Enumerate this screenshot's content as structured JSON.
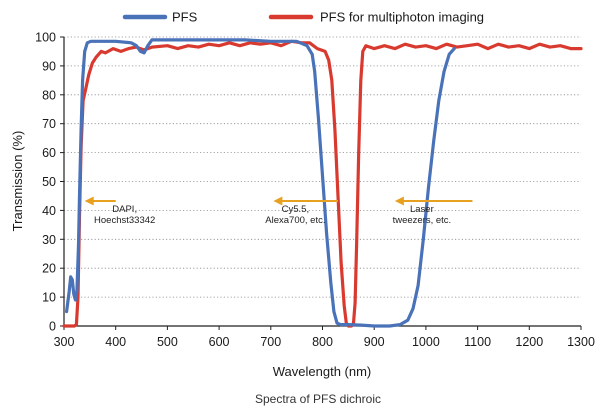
{
  "chart_data": {
    "type": "line",
    "title": "",
    "xlabel": "Wavelength (nm)",
    "ylabel": "Transmission (%)",
    "xlim": [
      300,
      1300
    ],
    "ylim": [
      0,
      100
    ],
    "xticks": [
      300,
      400,
      500,
      600,
      700,
      800,
      900,
      1000,
      1100,
      1200,
      1300
    ],
    "yticks": [
      0,
      10,
      20,
      30,
      40,
      50,
      60,
      70,
      80,
      90,
      100
    ],
    "grid": "horizontal-dotted",
    "legend": "top-center",
    "caption": "Spectra of PFS dichroic",
    "series": [
      {
        "name": "PFS",
        "color": "#4a72b8",
        "points": [
          [
            305,
            5
          ],
          [
            310,
            12
          ],
          [
            313,
            17
          ],
          [
            316,
            16
          ],
          [
            319,
            11
          ],
          [
            322,
            9
          ],
          [
            325,
            12
          ],
          [
            328,
            28
          ],
          [
            330,
            45
          ],
          [
            333,
            68
          ],
          [
            336,
            85
          ],
          [
            340,
            95
          ],
          [
            345,
            98
          ],
          [
            352,
            98.5
          ],
          [
            370,
            98.5
          ],
          [
            400,
            98.5
          ],
          [
            430,
            98
          ],
          [
            440,
            97
          ],
          [
            448,
            95
          ],
          [
            455,
            94.5
          ],
          [
            462,
            97
          ],
          [
            470,
            99
          ],
          [
            500,
            99
          ],
          [
            550,
            99
          ],
          [
            600,
            99
          ],
          [
            650,
            99
          ],
          [
            700,
            98.5
          ],
          [
            750,
            98.5
          ],
          [
            770,
            97
          ],
          [
            780,
            94
          ],
          [
            785,
            88
          ],
          [
            792,
            72
          ],
          [
            800,
            52
          ],
          [
            808,
            32
          ],
          [
            816,
            15
          ],
          [
            822,
            5
          ],
          [
            828,
            1
          ],
          [
            835,
            0.5
          ],
          [
            850,
            0.5
          ],
          [
            875,
            0.3
          ],
          [
            900,
            0
          ],
          [
            930,
            0
          ],
          [
            950,
            0.5
          ],
          [
            965,
            2
          ],
          [
            975,
            6
          ],
          [
            985,
            14
          ],
          [
            995,
            30
          ],
          [
            1005,
            48
          ],
          [
            1015,
            64
          ],
          [
            1025,
            78
          ],
          [
            1035,
            88
          ],
          [
            1045,
            94
          ],
          [
            1055,
            96
          ]
        ]
      },
      {
        "name": "PFS for multiphoton imaging",
        "color": "#d93a2f",
        "points": [
          [
            300,
            0
          ],
          [
            320,
            0
          ],
          [
            324,
            0.5
          ],
          [
            327,
            10
          ],
          [
            330,
            38
          ],
          [
            333,
            62
          ],
          [
            337,
            78
          ],
          [
            342,
            82
          ],
          [
            348,
            87
          ],
          [
            355,
            91
          ],
          [
            362,
            93
          ],
          [
            372,
            95
          ],
          [
            380,
            94.5
          ],
          [
            395,
            96
          ],
          [
            410,
            95
          ],
          [
            425,
            96
          ],
          [
            440,
            96.5
          ],
          [
            455,
            95.5
          ],
          [
            470,
            96.5
          ],
          [
            500,
            97
          ],
          [
            520,
            96
          ],
          [
            540,
            97
          ],
          [
            560,
            96.5
          ],
          [
            580,
            97.5
          ],
          [
            600,
            97
          ],
          [
            620,
            98
          ],
          [
            640,
            97
          ],
          [
            660,
            98
          ],
          [
            680,
            97.5
          ],
          [
            700,
            98
          ],
          [
            720,
            97
          ],
          [
            740,
            98.5
          ],
          [
            760,
            98
          ],
          [
            775,
            98
          ],
          [
            790,
            96
          ],
          [
            805,
            95
          ],
          [
            812,
            92
          ],
          [
            818,
            85
          ],
          [
            824,
            68
          ],
          [
            830,
            45
          ],
          [
            836,
            22
          ],
          [
            842,
            7
          ],
          [
            846,
            1
          ],
          [
            850,
            0
          ],
          [
            856,
            0
          ],
          [
            860,
            1
          ],
          [
            863,
            8
          ],
          [
            866,
            28
          ],
          [
            870,
            60
          ],
          [
            874,
            85
          ],
          [
            878,
            95
          ],
          [
            884,
            97
          ],
          [
            900,
            96
          ],
          [
            920,
            97
          ],
          [
            940,
            96
          ],
          [
            960,
            97.5
          ],
          [
            980,
            96.5
          ],
          [
            1000,
            97
          ],
          [
            1020,
            96
          ],
          [
            1040,
            97.5
          ],
          [
            1060,
            96.5
          ],
          [
            1080,
            97
          ],
          [
            1100,
            97.5
          ],
          [
            1120,
            96
          ],
          [
            1140,
            97.5
          ],
          [
            1160,
            96.5
          ],
          [
            1180,
            97
          ],
          [
            1200,
            96
          ],
          [
            1220,
            97.5
          ],
          [
            1240,
            96.5
          ],
          [
            1260,
            97
          ],
          [
            1280,
            96
          ],
          [
            1300,
            96
          ]
        ]
      }
    ],
    "annotations": [
      {
        "lines": [
          "DAPI,",
          "Hoechst33342"
        ],
        "arrow_from": 400,
        "arrow_to": 340,
        "y": 45,
        "arrow_color": "#e8a020"
      },
      {
        "lines": [
          "Cy5.5,",
          "Alexa700, etc."
        ],
        "arrow_from": 830,
        "arrow_to": 705,
        "y": 45,
        "arrow_color": "#e8a020"
      },
      {
        "lines": [
          "Laser",
          "tweezers, etc."
        ],
        "arrow_from": 1090,
        "arrow_to": 940,
        "y": 45,
        "arrow_color": "#e8a020"
      }
    ]
  }
}
